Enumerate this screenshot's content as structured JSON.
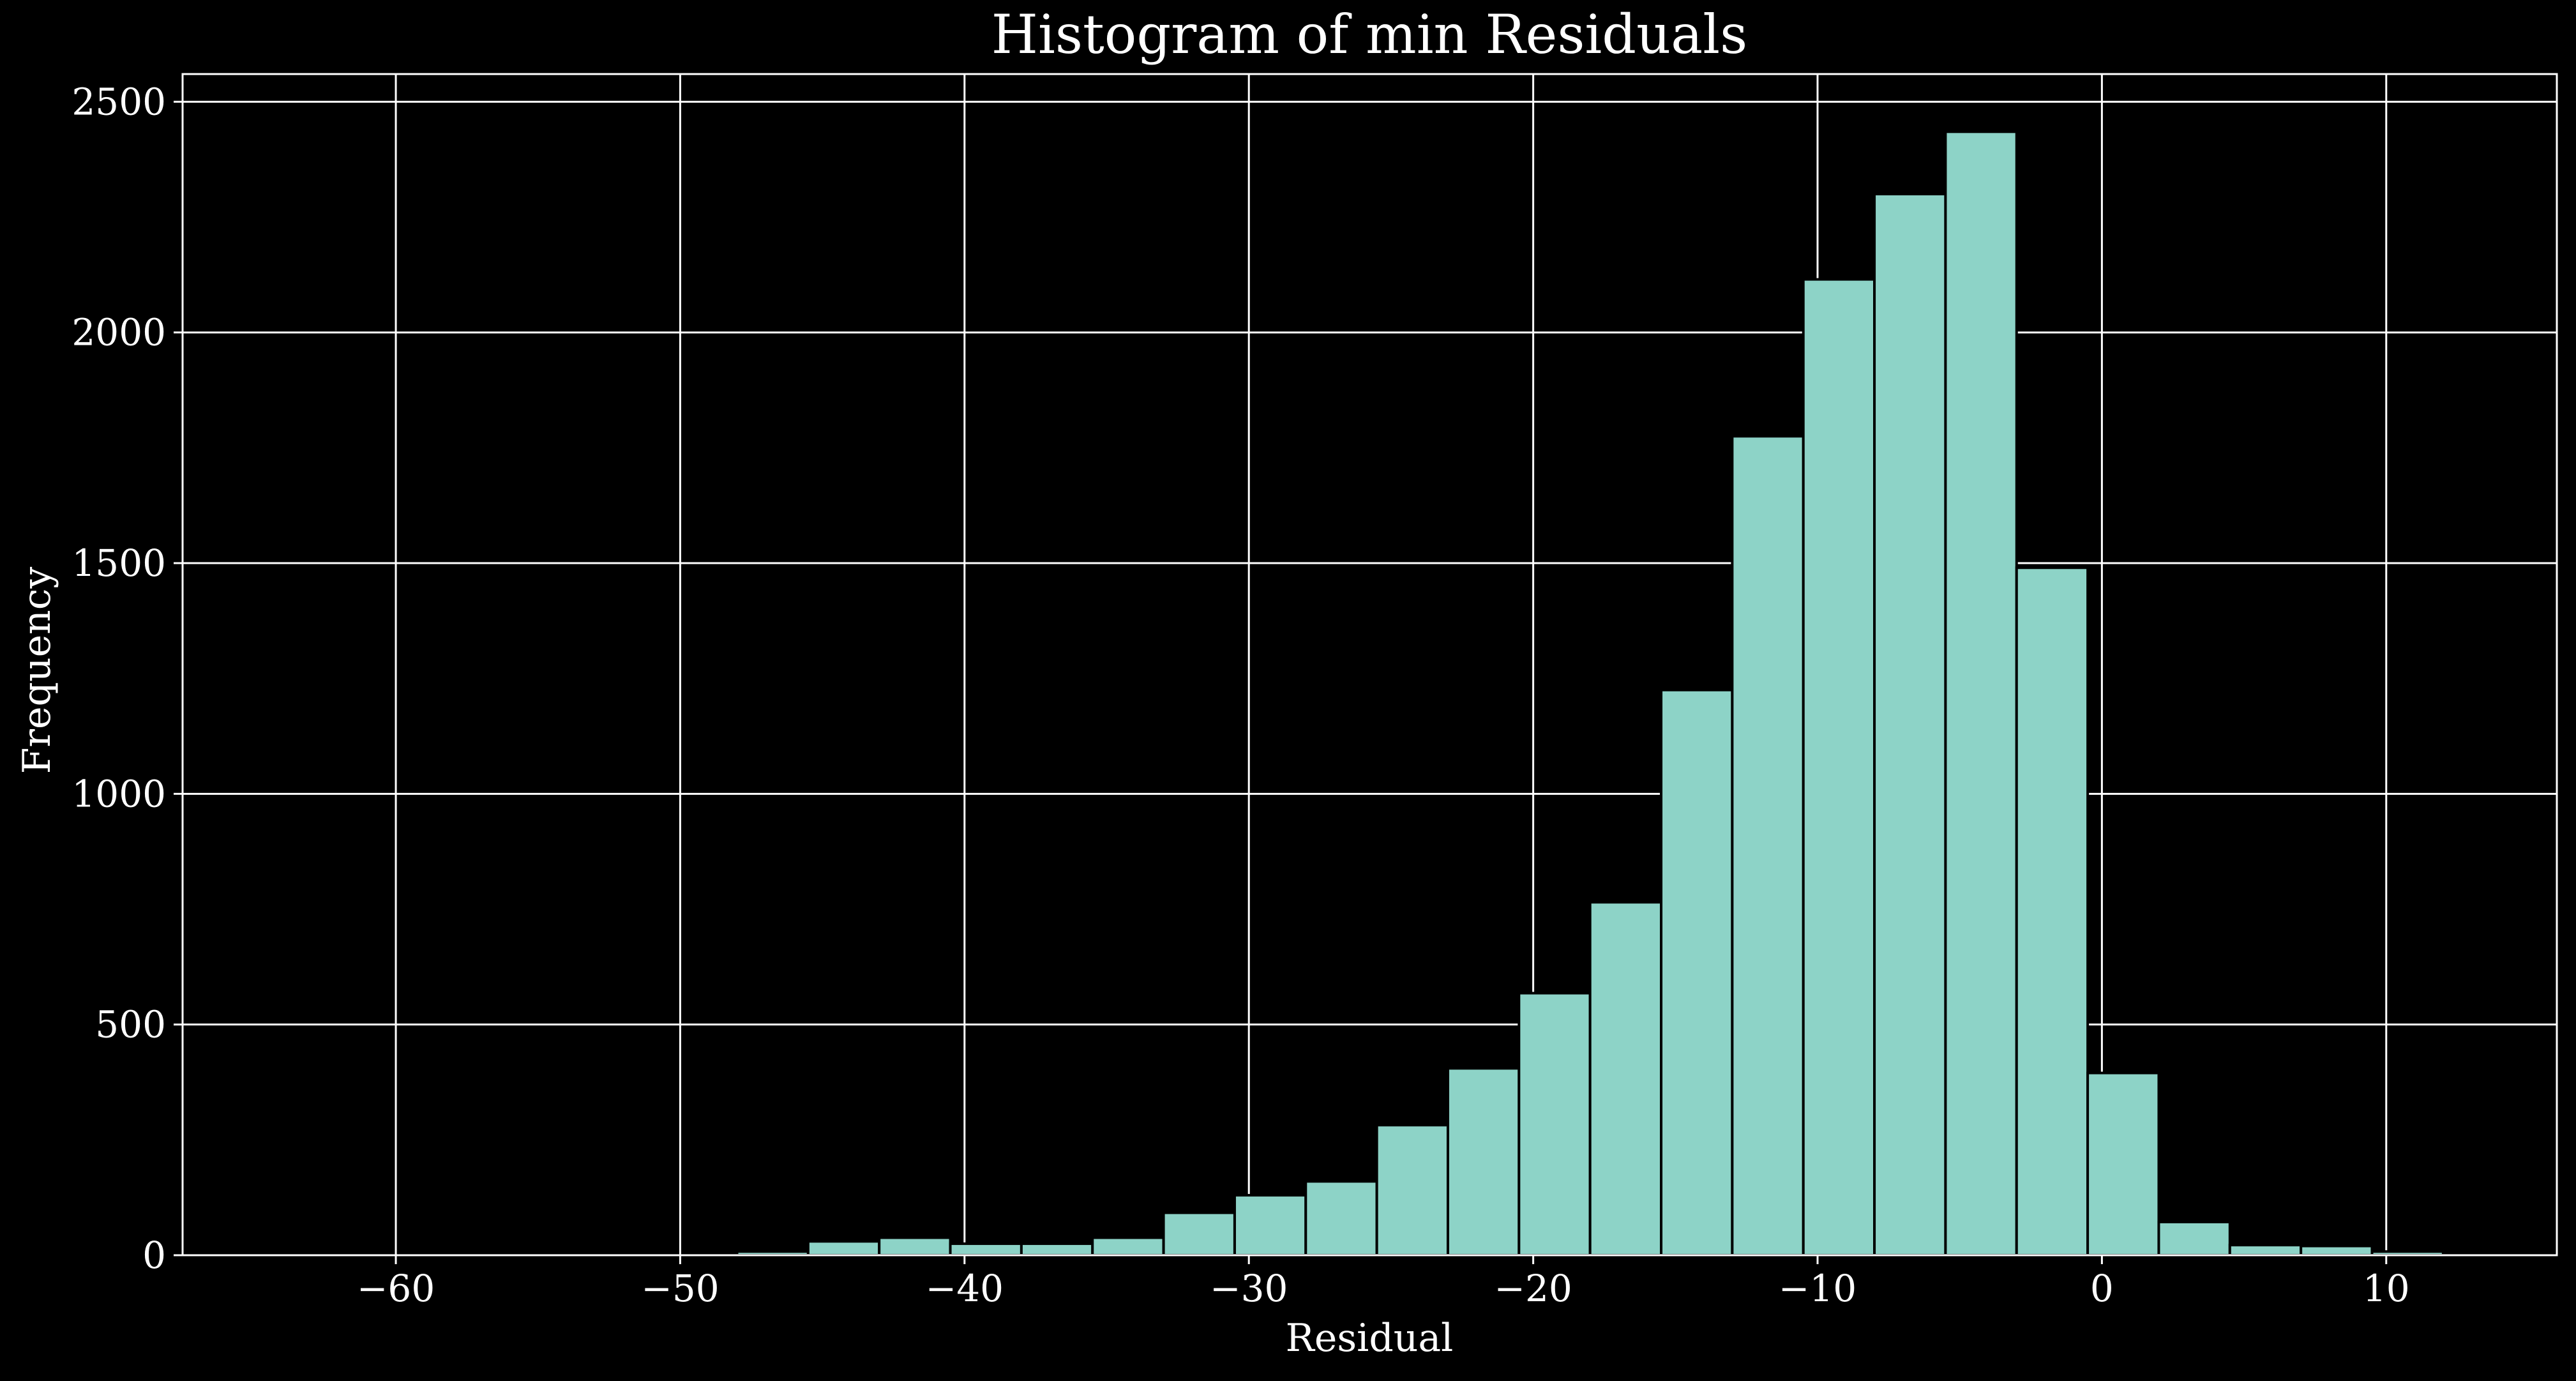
{
  "chart_data": {
    "type": "bar",
    "title": "Histogram of min Residuals",
    "xlabel": "Residual",
    "ylabel": "Frequency",
    "xlim": [
      -67.5,
      16
    ],
    "ylim": [
      0,
      2560
    ],
    "xticks": [
      -60,
      -50,
      -40,
      -30,
      -20,
      -10,
      0,
      10
    ],
    "xtick_labels": [
      "−60",
      "−50",
      "−40",
      "−30",
      "−20",
      "−10",
      "0",
      "10"
    ],
    "yticks": [
      0,
      500,
      1000,
      1500,
      2000,
      2500
    ],
    "ytick_labels": [
      "0",
      "500",
      "1000",
      "1500",
      "2000",
      "2500"
    ],
    "grid": true,
    "bins": [
      {
        "x0": -65.5,
        "x1": -63.0,
        "count": 1
      },
      {
        "x0": -63.0,
        "x1": -60.5,
        "count": 0
      },
      {
        "x0": -60.5,
        "x1": -58.0,
        "count": 0
      },
      {
        "x0": -58.0,
        "x1": -55.5,
        "count": 0
      },
      {
        "x0": -55.5,
        "x1": -53.0,
        "count": 0
      },
      {
        "x0": -53.0,
        "x1": -50.5,
        "count": 0
      },
      {
        "x0": -50.5,
        "x1": -48.0,
        "count": 0
      },
      {
        "x0": -48.0,
        "x1": -45.5,
        "count": 8
      },
      {
        "x0": -45.5,
        "x1": -43.0,
        "count": 30
      },
      {
        "x0": -43.0,
        "x1": -40.5,
        "count": 38
      },
      {
        "x0": -40.5,
        "x1": -38.0,
        "count": 25
      },
      {
        "x0": -38.0,
        "x1": -35.5,
        "count": 25
      },
      {
        "x0": -35.5,
        "x1": -33.0,
        "count": 38
      },
      {
        "x0": -33.0,
        "x1": -30.5,
        "count": 92
      },
      {
        "x0": -30.5,
        "x1": -28.0,
        "count": 130
      },
      {
        "x0": -28.0,
        "x1": -25.5,
        "count": 160
      },
      {
        "x0": -25.5,
        "x1": -23.0,
        "count": 282
      },
      {
        "x0": -23.0,
        "x1": -20.5,
        "count": 405
      },
      {
        "x0": -20.5,
        "x1": -18.0,
        "count": 568
      },
      {
        "x0": -18.0,
        "x1": -15.5,
        "count": 765
      },
      {
        "x0": -15.5,
        "x1": -13.0,
        "count": 1225
      },
      {
        "x0": -13.0,
        "x1": -10.5,
        "count": 1775
      },
      {
        "x0": -10.5,
        "x1": -8.0,
        "count": 2115
      },
      {
        "x0": -8.0,
        "x1": -5.5,
        "count": 2300
      },
      {
        "x0": -5.5,
        "x1": -3.0,
        "count": 2435
      },
      {
        "x0": -3.0,
        "x1": -0.5,
        "count": 1490
      },
      {
        "x0": -0.5,
        "x1": 2.0,
        "count": 395
      },
      {
        "x0": 2.0,
        "x1": 4.5,
        "count": 72
      },
      {
        "x0": 4.5,
        "x1": 7.0,
        "count": 22
      },
      {
        "x0": 7.0,
        "x1": 9.5,
        "count": 20
      },
      {
        "x0": 9.5,
        "x1": 12.0,
        "count": 8
      }
    ],
    "colors": {
      "background": "#000000",
      "bar_fill": "#8dd3c7",
      "bar_edge": "#000000",
      "grid": "#ffffff",
      "text": "#ffffff"
    }
  }
}
